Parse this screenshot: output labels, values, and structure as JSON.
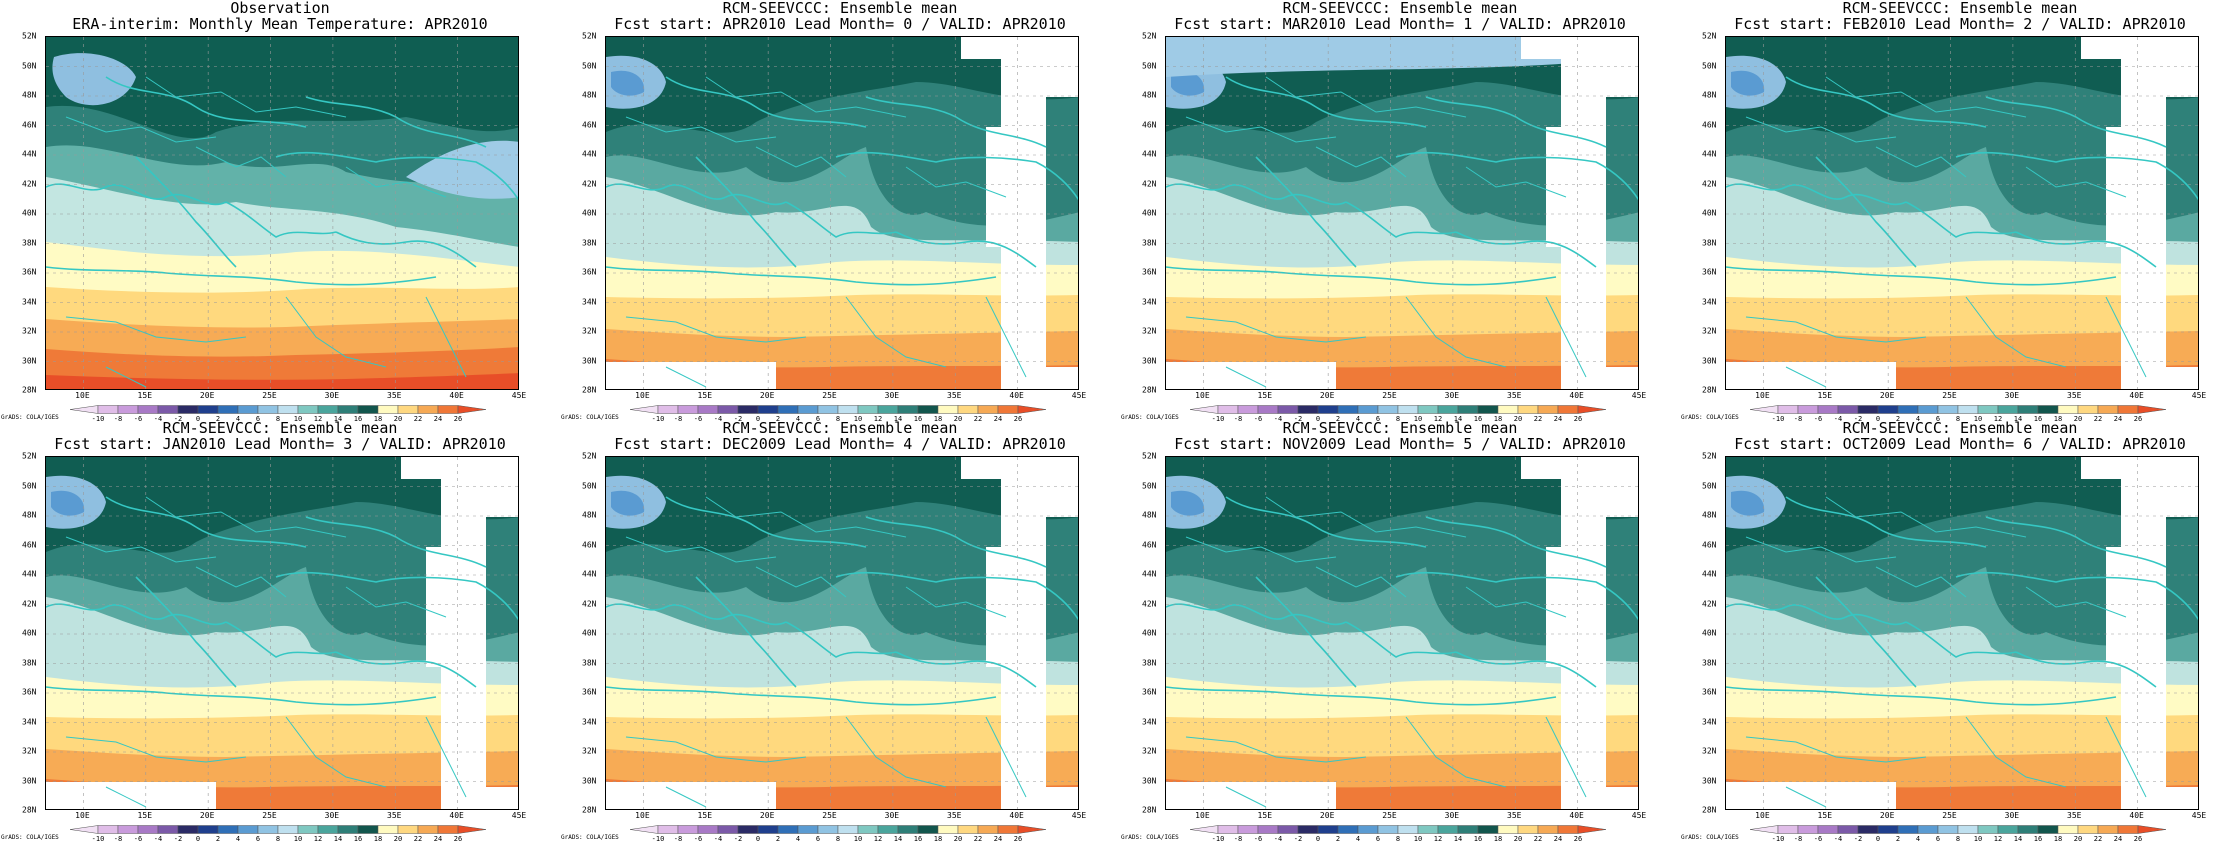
{
  "panels": [
    {
      "line1": "Observation",
      "line2": "ERA-interim:  Monthly Mean Temperature: APR2010",
      "variant": "obs"
    },
    {
      "line1": "RCM-SEEVCCC: Ensemble mean",
      "line2": "Fcst start: APR2010  Lead Month= 0 / VALID: APR2010",
      "variant": "fc"
    },
    {
      "line1": "RCM-SEEVCCC: Ensemble mean",
      "line2": "Fcst start: MAR2010  Lead Month= 1 / VALID: APR2010",
      "variant": "fc"
    },
    {
      "line1": "RCM-SEEVCCC: Ensemble mean",
      "line2": "Fcst start: FEB2010  Lead Month= 2 / VALID: APR2010",
      "variant": "fc"
    },
    {
      "line1": "RCM-SEEVCCC: Ensemble mean",
      "line2": "Fcst start: JAN2010  Lead Month= 3 / VALID: APR2010",
      "variant": "fc"
    },
    {
      "line1": "RCM-SEEVCCC: Ensemble mean",
      "line2": "Fcst start: DEC2009  Lead Month= 4 / VALID: APR2010",
      "variant": "fc"
    },
    {
      "line1": "RCM-SEEVCCC: Ensemble mean",
      "line2": "Fcst start: NOV2009  Lead Month= 5 / VALID: APR2010",
      "variant": "fc"
    },
    {
      "line1": "RCM-SEEVCCC: Ensemble mean",
      "line2": "Fcst start: OCT2009  Lead Month= 6 / VALID: APR2010",
      "variant": "fc"
    }
  ],
  "lat_labels": [
    "52N",
    "50N",
    "48N",
    "46N",
    "44N",
    "42N",
    "40N",
    "38N",
    "36N",
    "34N",
    "32N",
    "30N",
    "28N"
  ],
  "lon_labels": [
    "10E",
    "15E",
    "20E",
    "25E",
    "30E",
    "35E",
    "40E",
    "45E"
  ],
  "lon_values": [
    10,
    15,
    20,
    25,
    30,
    35,
    40,
    45
  ],
  "lon_range": [
    7,
    45
  ],
  "colorbar_labels": [
    "-10",
    "-8",
    "-6",
    "-4",
    "-2",
    "0",
    "2",
    "4",
    "6",
    "8",
    "10",
    "12",
    "14",
    "16",
    "18",
    "20",
    "22",
    "24",
    "26"
  ],
  "colorbar_colors": [
    "#f1e0f4",
    "#e0bde8",
    "#c99bdc",
    "#a879c6",
    "#7b59a8",
    "#2b2b66",
    "#1f3f8d",
    "#2f6fb7",
    "#5a9bd2",
    "#90c3e3",
    "#bfe0ef",
    "#7fc8c1",
    "#4aa59c",
    "#2e7f78",
    "#12564d",
    "#fffac0",
    "#ffd880",
    "#f6a954",
    "#f07737",
    "#e84e28"
  ],
  "credit": "GrADS: COLA/IGES"
}
